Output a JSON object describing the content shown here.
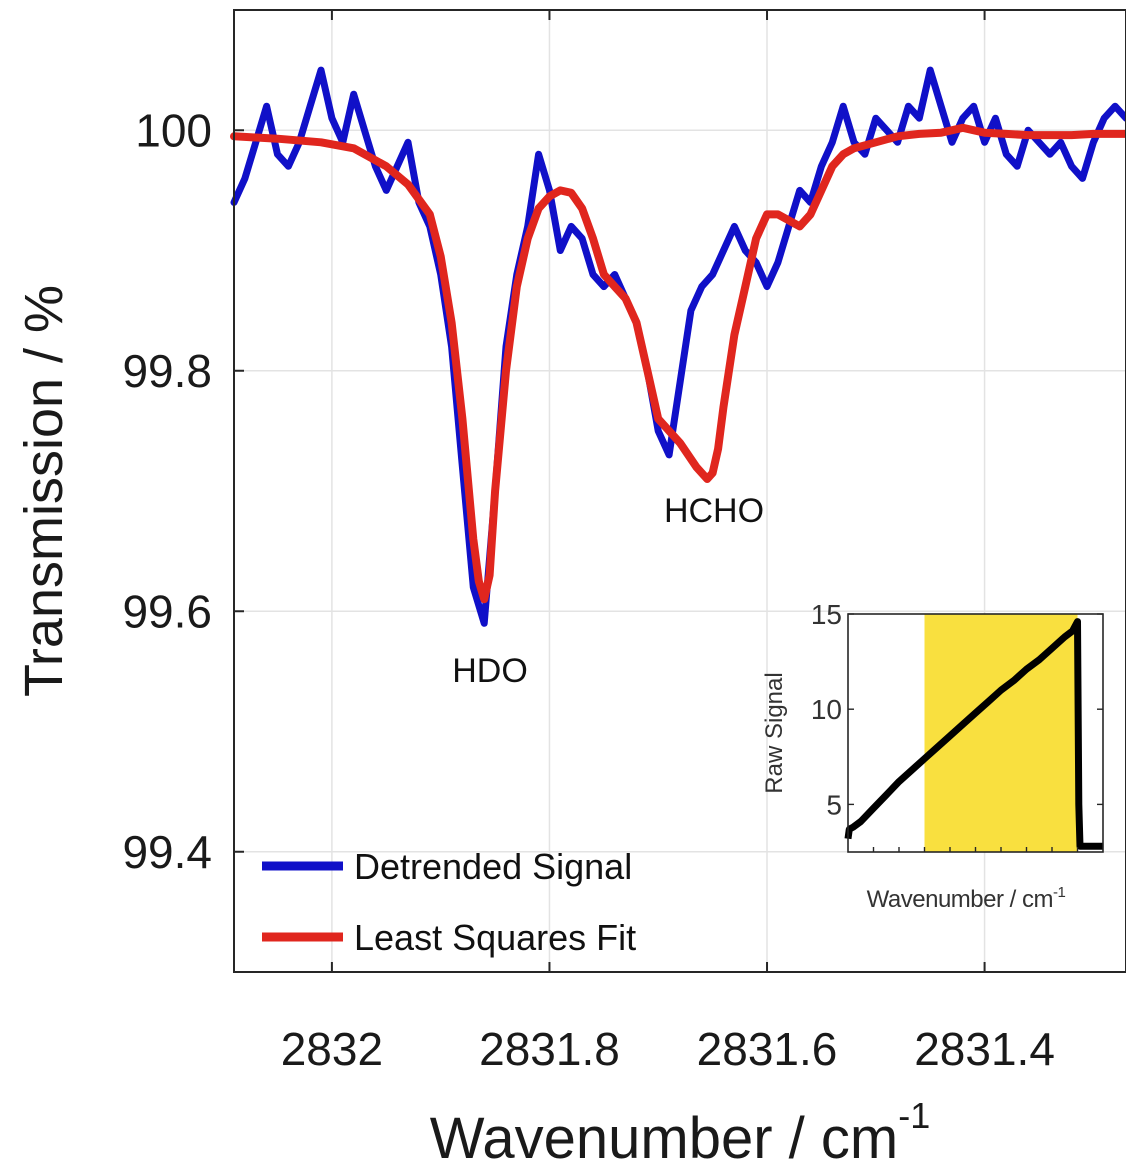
{
  "chart_data": [
    {
      "type": "line",
      "xlabel": "Wavenumber / cm",
      "xlabel_superscript": "-1",
      "ylabel": "Transmission / %",
      "x_reversed": true,
      "xlim": [
        2832.09,
        2831.27
      ],
      "ylim": [
        99.3,
        100.1
      ],
      "xticks": [
        2832,
        2831.8,
        2831.6,
        2831.4
      ],
      "xtick_labels": [
        "2832",
        "2831.8",
        "2831.6",
        "2831.4"
      ],
      "yticks": [
        99.4,
        99.6,
        99.8,
        100
      ],
      "ytick_labels": [
        "99.4",
        "99.6",
        "99.8",
        "100"
      ],
      "grid": true,
      "legend_position": "bottom-left",
      "annotations": [
        {
          "text": "HDO",
          "x": 2831.86,
          "y": 99.545
        },
        {
          "text": "HCHO",
          "x": 2831.64,
          "y": 99.665
        }
      ],
      "series": [
        {
          "name": "Detrended Signal",
          "color": "#1010c8",
          "x": [
            2832.09,
            2832.08,
            2832.07,
            2832.06,
            2832.05,
            2832.04,
            2832.03,
            2832.02,
            2832.01,
            2832.0,
            2831.99,
            2831.98,
            2831.97,
            2831.96,
            2831.95,
            2831.94,
            2831.93,
            2831.92,
            2831.91,
            2831.9,
            2831.89,
            2831.88,
            2831.87,
            2831.86,
            2831.85,
            2831.84,
            2831.83,
            2831.82,
            2831.81,
            2831.8,
            2831.79,
            2831.78,
            2831.77,
            2831.76,
            2831.75,
            2831.74,
            2831.73,
            2831.72,
            2831.71,
            2831.7,
            2831.69,
            2831.68,
            2831.67,
            2831.66,
            2831.65,
            2831.64,
            2831.63,
            2831.62,
            2831.61,
            2831.6,
            2831.59,
            2831.58,
            2831.57,
            2831.56,
            2831.55,
            2831.54,
            2831.53,
            2831.52,
            2831.51,
            2831.5,
            2831.49,
            2831.48,
            2831.47,
            2831.46,
            2831.45,
            2831.44,
            2831.43,
            2831.42,
            2831.41,
            2831.4,
            2831.39,
            2831.38,
            2831.37,
            2831.36,
            2831.35,
            2831.34,
            2831.33,
            2831.32,
            2831.31,
            2831.3,
            2831.29,
            2831.28,
            2831.27
          ],
          "y": [
            99.94,
            99.96,
            99.99,
            100.02,
            99.98,
            99.97,
            99.99,
            100.02,
            100.05,
            100.01,
            99.99,
            100.03,
            100.0,
            99.97,
            99.95,
            99.97,
            99.99,
            99.94,
            99.92,
            99.88,
            99.82,
            99.72,
            99.62,
            99.59,
            99.7,
            99.82,
            99.88,
            99.92,
            99.98,
            99.95,
            99.9,
            99.92,
            99.91,
            99.88,
            99.87,
            99.88,
            99.86,
            99.84,
            99.8,
            99.75,
            99.73,
            99.79,
            99.85,
            99.87,
            99.88,
            99.9,
            99.92,
            99.9,
            99.89,
            99.87,
            99.89,
            99.92,
            99.95,
            99.94,
            99.97,
            99.99,
            100.02,
            99.99,
            99.98,
            100.01,
            100.0,
            99.99,
            100.02,
            100.01,
            100.05,
            100.02,
            99.99,
            100.01,
            100.02,
            99.99,
            100.01,
            99.98,
            99.97,
            100.0,
            99.99,
            99.98,
            99.99,
            99.97,
            99.96,
            99.99,
            100.01,
            100.02,
            100.01
          ]
        },
        {
          "name": "Least Squares Fit",
          "color": "#e0261e",
          "x": [
            2832.09,
            2832.05,
            2832.01,
            2831.98,
            2831.95,
            2831.93,
            2831.91,
            2831.9,
            2831.89,
            2831.88,
            2831.87,
            2831.865,
            2831.86,
            2831.855,
            2831.85,
            2831.84,
            2831.83,
            2831.82,
            2831.81,
            2831.8,
            2831.79,
            2831.78,
            2831.77,
            2831.76,
            2831.75,
            2831.74,
            2831.73,
            2831.72,
            2831.71,
            2831.7,
            2831.68,
            2831.665,
            2831.655,
            2831.65,
            2831.645,
            2831.64,
            2831.63,
            2831.62,
            2831.61,
            2831.6,
            2831.59,
            2831.58,
            2831.57,
            2831.56,
            2831.55,
            2831.54,
            2831.53,
            2831.52,
            2831.5,
            2831.48,
            2831.46,
            2831.44,
            2831.42,
            2831.4,
            2831.38,
            2831.36,
            2831.34,
            2831.32,
            2831.3,
            2831.27
          ],
          "y": [
            99.995,
            99.993,
            99.99,
            99.985,
            99.97,
            99.955,
            99.93,
            99.895,
            99.84,
            99.76,
            99.66,
            99.625,
            99.61,
            99.63,
            99.7,
            99.8,
            99.87,
            99.91,
            99.935,
            99.945,
            99.95,
            99.948,
            99.935,
            99.91,
            99.88,
            99.87,
            99.86,
            99.84,
            99.8,
            99.76,
            99.74,
            99.72,
            99.71,
            99.715,
            99.735,
            99.77,
            99.83,
            99.87,
            99.91,
            99.93,
            99.93,
            99.925,
            99.92,
            99.93,
            99.95,
            99.97,
            99.98,
            99.985,
            99.99,
            99.995,
            99.997,
            99.998,
            100.002,
            99.998,
            99.997,
            99.996,
            99.996,
            99.996,
            99.997,
            99.997
          ]
        }
      ]
    },
    {
      "type": "line",
      "role": "inset",
      "xlabel": "Wavenumber / cm",
      "xlabel_superscript": "-1",
      "ylabel": "Raw Signal",
      "ylim": [
        2.5,
        15
      ],
      "yticks": [
        5,
        10,
        15
      ],
      "ytick_labels": [
        "5",
        "10",
        "15"
      ],
      "xlim": [
        0,
        1
      ],
      "x_tick_count": 10,
      "highlight_range": [
        0.3,
        0.9
      ],
      "highlight_color": "#f9e03f",
      "series": [
        {
          "color": "#000000",
          "x": [
            0.0,
            0.005,
            0.02,
            0.05,
            0.1,
            0.15,
            0.2,
            0.25,
            0.3,
            0.35,
            0.4,
            0.45,
            0.5,
            0.55,
            0.6,
            0.65,
            0.7,
            0.75,
            0.8,
            0.85,
            0.88,
            0.9,
            0.905,
            0.91,
            0.96,
            1.0
          ],
          "y": [
            3.2,
            3.7,
            3.8,
            4.1,
            4.8,
            5.5,
            6.2,
            6.8,
            7.4,
            8.0,
            8.6,
            9.2,
            9.8,
            10.4,
            11.0,
            11.5,
            12.1,
            12.6,
            13.2,
            13.8,
            14.1,
            14.6,
            5.0,
            2.8,
            2.8,
            2.8
          ]
        }
      ]
    }
  ]
}
